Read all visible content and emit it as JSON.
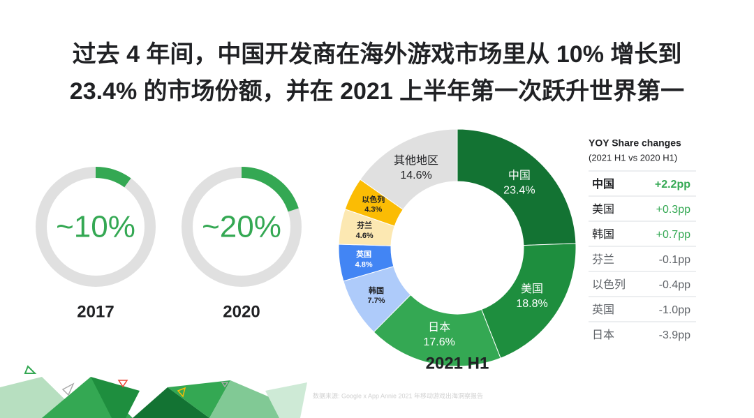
{
  "title": [
    "过去 4 年间，中国开发商在海外游戏市场里从 10% 增长到",
    "23.4% 的市场份额，并在 2021 上半年第一次跃升世界第一"
  ],
  "chart_data": [
    {
      "type": "ring",
      "categories": [
        "2017"
      ],
      "values": [
        10
      ],
      "value_labels": [
        "~10%"
      ],
      "color": "#34a853",
      "track_color": "#e0e0e0"
    },
    {
      "type": "ring",
      "categories": [
        "2020"
      ],
      "values": [
        20
      ],
      "value_labels": [
        "~20%"
      ],
      "color": "#34a853",
      "track_color": "#e0e0e0"
    },
    {
      "type": "pie",
      "donut": true,
      "title": "2021 H1",
      "categories": [
        "中国",
        "美国",
        "日本",
        "韩国",
        "英国",
        "芬兰",
        "以色列",
        "其他地区"
      ],
      "values": [
        23.4,
        18.8,
        17.6,
        7.7,
        4.8,
        4.6,
        4.3,
        14.6
      ],
      "value_labels": [
        "23.4%",
        "18.8%",
        "17.6%",
        "7.7%",
        "4.8%",
        "4.6%",
        "4.3%",
        "14.6%"
      ],
      "colors": [
        "#137333",
        "#1e8e3e",
        "#34a853",
        "#aecbfa",
        "#4285f4",
        "#fce8b2",
        "#fbbc04",
        "#e0e0e0"
      ]
    }
  ],
  "table": {
    "title": "YOY Share changes",
    "subtitle": "(2021 H1 vs 2020 H1)",
    "rows": [
      [
        "中国",
        "+2.2pp"
      ],
      [
        "美国",
        "+0.3pp"
      ],
      [
        "韩国",
        "+0.7pp"
      ],
      [
        "芬兰",
        "-0.1pp"
      ],
      [
        "以色列",
        "-0.4pp"
      ],
      [
        "英国",
        "-1.0pp"
      ],
      [
        "日本",
        "-3.9pp"
      ]
    ]
  },
  "source": "数据来源: Google x App Annie 2021 年移动游戏出海洞察报告"
}
